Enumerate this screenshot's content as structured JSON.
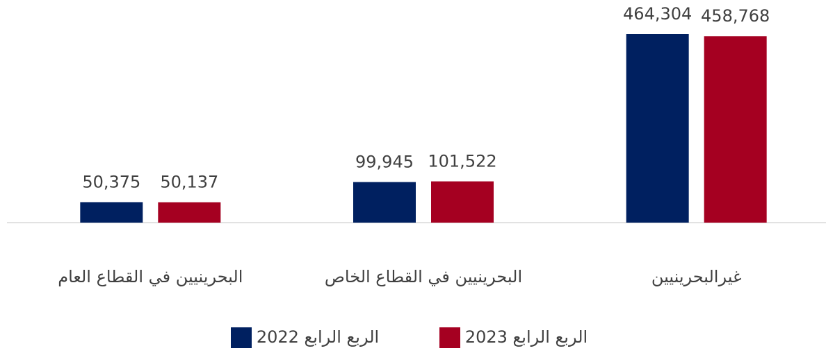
{
  "chart_data": {
    "type": "bar",
    "categories": [
      "غيرالبحرينيين",
      "البحرينيين في القطاع الخاص",
      "البحرينيين في القطاع العام"
    ],
    "series": [
      {
        "name": "الربع الرابع 2022",
        "color": "#002060",
        "values": [
          464304,
          99945,
          50375
        ],
        "value_labels": [
          "464,304",
          "99,945",
          "50,375"
        ]
      },
      {
        "name": "الربع الرابع 2023",
        "color": "#a50021",
        "values": [
          458768,
          101522,
          50137
        ],
        "value_labels": [
          "458,768",
          "101,522",
          "50,137"
        ]
      }
    ],
    "legend": "bottom"
  }
}
